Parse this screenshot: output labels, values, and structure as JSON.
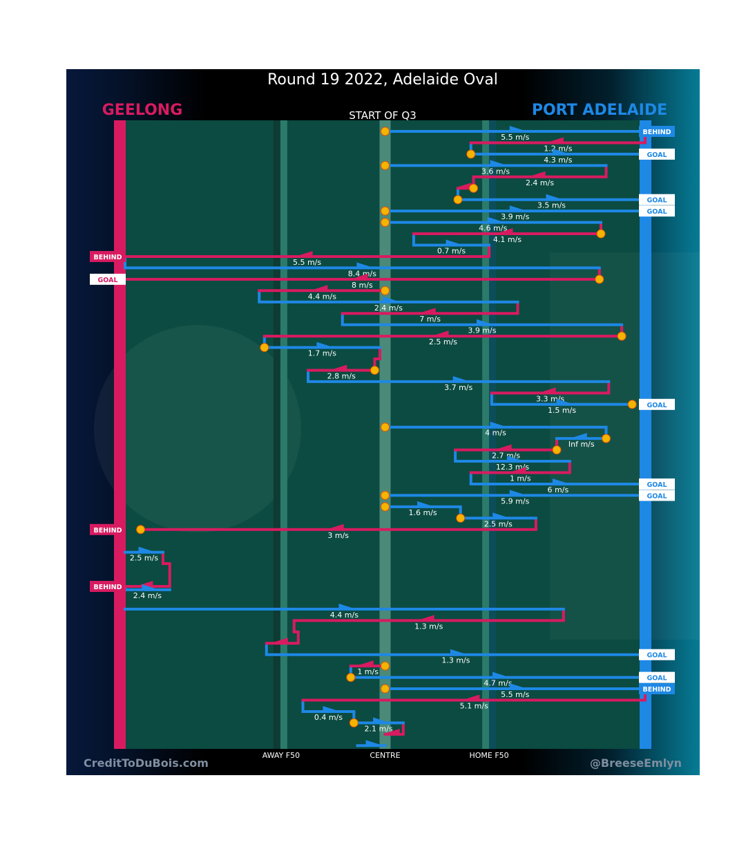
{
  "chart_data": {
    "type": "flow",
    "title": "Round 19 2022, Adelaide Oval",
    "subtitle": "START OF Q3",
    "teams": {
      "left": "GEELONG",
      "right": "PORT ADELAIDE"
    },
    "colors": {
      "geelong": "#d81b60",
      "port": "#1e88e5",
      "field": "#0b4b41",
      "dot": "#f4b400",
      "background": "#000000"
    },
    "x_labels": {
      "away": "AWAY F50",
      "centre": "CENTRE",
      "home": "HOME F50"
    },
    "footer": {
      "left": "CreditToDuBois.com",
      "right": "@BreeseEmlyn"
    },
    "x_axis_positions": {
      "geelong_goal": 0,
      "away_f50": 30,
      "centre": 50,
      "home_f50": 70,
      "port_goal": 100
    },
    "segments": [
      {
        "team": "port",
        "x0": 50,
        "x1": 100,
        "row": 0,
        "speed": "5.5 m/s",
        "dir": "r",
        "end": "BEHIND"
      },
      {
        "team": "geelong",
        "x0": 100,
        "x1": 66.5,
        "row": 1,
        "speed": "1.2 m/s",
        "dir": "l"
      },
      {
        "team": "port",
        "x0": 66.5,
        "x1": 100,
        "row": 2,
        "speed": "4.3 m/s",
        "dir": "r",
        "end": "GOAL"
      },
      {
        "team": "port",
        "x0": 50,
        "x1": 92.5,
        "row": 3,
        "speed": "3.6 m/s",
        "dir": "r"
      },
      {
        "team": "geelong",
        "x0": 92.5,
        "x1": 67,
        "row": 4,
        "speed": "2.4 m/s",
        "dir": "l"
      },
      {
        "team": "geelong",
        "x0": 67,
        "x1": 64,
        "row": 5,
        "speed": "",
        "dir": "l"
      },
      {
        "team": "port",
        "x0": 64,
        "x1": 100,
        "row": 6,
        "speed": "3.5 m/s",
        "dir": "r",
        "end": "GOAL"
      },
      {
        "team": "port",
        "x0": 50,
        "x1": 100,
        "row": 7,
        "speed": "3.9 m/s",
        "dir": "r",
        "end": "GOAL"
      },
      {
        "team": "port",
        "x0": 50,
        "x1": 91.5,
        "row": 8,
        "speed": "4.6 m/s",
        "dir": "r"
      },
      {
        "team": "geelong",
        "x0": 91.5,
        "x1": 55.5,
        "row": 9,
        "speed": "4.1 m/s",
        "dir": "l"
      },
      {
        "team": "port",
        "x0": 55.5,
        "x1": 70,
        "row": 10,
        "speed": "0.7 m/s",
        "dir": "r"
      },
      {
        "team": "geelong",
        "x0": 70,
        "x1": 0,
        "row": 11,
        "speed": "5.5 m/s",
        "dir": "l",
        "end": "BEHIND"
      },
      {
        "team": "port",
        "x0": 0,
        "x1": 91.2,
        "row": 12,
        "speed": "8.4 m/s",
        "dir": "r"
      },
      {
        "team": "geelong",
        "x0": 91.2,
        "x1": 0,
        "row": 13,
        "speed": "8 m/s",
        "dir": "l",
        "end": "GOAL"
      },
      {
        "team": "geelong",
        "x0": 50,
        "x1": 25.8,
        "row": 14,
        "speed": "4.4 m/s",
        "dir": "l"
      },
      {
        "team": "port",
        "x0": 25.8,
        "x1": 75.5,
        "row": 15,
        "speed": "2.4 m/s",
        "dir": "r"
      },
      {
        "team": "geelong",
        "x0": 75.5,
        "x1": 41.8,
        "row": 16,
        "speed": "7 m/s",
        "dir": "l"
      },
      {
        "team": "port",
        "x0": 41.8,
        "x1": 95.5,
        "row": 17,
        "speed": "3.9 m/s",
        "dir": "r"
      },
      {
        "team": "geelong",
        "x0": 95.5,
        "x1": 26.8,
        "row": 18,
        "speed": "2.5 m/s",
        "dir": "l"
      },
      {
        "team": "port",
        "x0": 26.8,
        "x1": 49,
        "row": 19,
        "speed": "1.7 m/s",
        "dir": "r"
      },
      {
        "team": "geelong",
        "x0": 49,
        "x1": 48,
        "row": 20,
        "speed": "",
        "dir": "l"
      },
      {
        "team": "geelong",
        "x0": 48,
        "x1": 35.2,
        "row": 21,
        "speed": "2.8 m/s",
        "dir": "l"
      },
      {
        "team": "port",
        "x0": 35.2,
        "x1": 93,
        "row": 22,
        "speed": "3.7 m/s",
        "dir": "r"
      },
      {
        "team": "geelong",
        "x0": 93,
        "x1": 70.5,
        "row": 23,
        "speed": "3.3 m/s",
        "dir": "l"
      },
      {
        "team": "port",
        "x0": 70.5,
        "x1": 97.5,
        "row": 24,
        "speed": "1.5 m/s",
        "dir": "r",
        "end": "GOAL"
      },
      {
        "team": "port",
        "x0": 50,
        "x1": 92.5,
        "row": 26,
        "speed": "4 m/s",
        "dir": "r"
      },
      {
        "team": "port",
        "x0": 92.5,
        "x1": 83,
        "row": 27,
        "speed": "Inf m/s",
        "dir": "l"
      },
      {
        "team": "geelong",
        "x0": 83,
        "x1": 63.5,
        "row": 28,
        "speed": "2.7 m/s",
        "dir": "l"
      },
      {
        "team": "port",
        "x0": 63.5,
        "x1": 85.5,
        "row": 29,
        "speed": "12.3 m/s",
        "dir": "r"
      },
      {
        "team": "geelong",
        "x0": 85.5,
        "x1": 66.5,
        "row": 30,
        "speed": "1 m/s",
        "dir": "l"
      },
      {
        "team": "port",
        "x0": 66.5,
        "x1": 100,
        "row": 31,
        "speed": "6 m/s",
        "dir": "r",
        "end": "GOAL"
      },
      {
        "team": "port",
        "x0": 50,
        "x1": 100,
        "row": 32,
        "speed": "5.9 m/s",
        "dir": "r",
        "end": "GOAL"
      },
      {
        "team": "port",
        "x0": 50,
        "x1": 64.5,
        "row": 33,
        "speed": "1.6 m/s",
        "dir": "r"
      },
      {
        "team": "port",
        "x0": 64.5,
        "x1": 79,
        "row": 34,
        "speed": "2.5 m/s",
        "dir": "r"
      },
      {
        "team": "geelong",
        "x0": 79,
        "x1": 3,
        "row": 35,
        "speed": "3 m/s",
        "dir": "l",
        "end": "BEHIND"
      },
      {
        "team": "port",
        "x0": 0,
        "x1": 7.3,
        "row": 37,
        "speed": "2.5 m/s",
        "dir": "r"
      },
      {
        "team": "geelong",
        "x0": 7.3,
        "x1": 8.6,
        "row": 38,
        "speed": "",
        "dir": "r"
      },
      {
        "team": "geelong",
        "x0": 8.6,
        "x1": 0,
        "row": 40,
        "speed": "",
        "dir": "l",
        "end": "BEHIND"
      },
      {
        "team": "port",
        "x0": 0,
        "x1": 8.6,
        "row": 40.3,
        "speed": "2.4 m/s",
        "dir": "r"
      },
      {
        "team": "port",
        "x0": 0,
        "x1": 84.3,
        "row": 42,
        "speed": "4.4 m/s",
        "dir": "r"
      },
      {
        "team": "geelong",
        "x0": 84.3,
        "x1": 32.5,
        "row": 43,
        "speed": "1.3 m/s",
        "dir": "l"
      },
      {
        "team": "geelong",
        "x0": 32.5,
        "x1": 33.3,
        "row": 44,
        "speed": "",
        "dir": "r"
      },
      {
        "team": "geelong",
        "x0": 33.3,
        "x1": 27.2,
        "row": 45,
        "speed": "",
        "dir": "l"
      },
      {
        "team": "port",
        "x0": 27.2,
        "x1": 100,
        "row": 46,
        "speed": "1.3 m/s",
        "dir": "r",
        "end": "GOAL"
      },
      {
        "team": "geelong",
        "x0": 50,
        "x1": 43.4,
        "row": 47,
        "speed": "1 m/s",
        "dir": "l"
      },
      {
        "team": "port",
        "x0": 43.4,
        "x1": 100,
        "row": 48,
        "speed": "4.7 m/s",
        "dir": "r",
        "end": "GOAL"
      },
      {
        "team": "port",
        "x0": 50,
        "x1": 100,
        "row": 49,
        "speed": "5.5 m/s",
        "dir": "r",
        "end": "BEHIND"
      },
      {
        "team": "geelong",
        "x0": 100,
        "x1": 34.2,
        "row": 50,
        "speed": "5.1 m/s",
        "dir": "l"
      },
      {
        "team": "port",
        "x0": 34.2,
        "x1": 44,
        "row": 51,
        "speed": "0.4 m/s",
        "dir": "r"
      },
      {
        "team": "port",
        "x0": 44,
        "x1": 53.5,
        "row": 52,
        "speed": "2.1 m/s",
        "dir": "r"
      },
      {
        "team": "geelong",
        "x0": 53.5,
        "x1": 50,
        "row": 53,
        "speed": "",
        "dir": "l"
      },
      {
        "team": "port",
        "x0": 44.7,
        "x1": 50,
        "row": 54,
        "speed": "",
        "dir": "r"
      }
    ],
    "stoppages": [
      {
        "x": 50,
        "row": 0
      },
      {
        "x": 66.5,
        "row": 2
      },
      {
        "x": 50,
        "row": 3
      },
      {
        "x": 67,
        "row": 5
      },
      {
        "x": 64,
        "row": 6
      },
      {
        "x": 50,
        "row": 7
      },
      {
        "x": 50,
        "row": 8
      },
      {
        "x": 91.5,
        "row": 9
      },
      {
        "x": 91.2,
        "row": 13
      },
      {
        "x": 50,
        "row": 14
      },
      {
        "x": 95.5,
        "row": 18
      },
      {
        "x": 26.8,
        "row": 19
      },
      {
        "x": 48,
        "row": 21
      },
      {
        "x": 97.5,
        "row": 24
      },
      {
        "x": 50,
        "row": 26
      },
      {
        "x": 92.5,
        "row": 27
      },
      {
        "x": 83,
        "row": 28
      },
      {
        "x": 50,
        "row": 32
      },
      {
        "x": 50,
        "row": 33
      },
      {
        "x": 64.5,
        "row": 34
      },
      {
        "x": 3,
        "row": 35
      },
      {
        "x": 50,
        "row": 47
      },
      {
        "x": 43.4,
        "row": 48
      },
      {
        "x": 50,
        "row": 49
      },
      {
        "x": 44,
        "row": 52
      }
    ]
  }
}
